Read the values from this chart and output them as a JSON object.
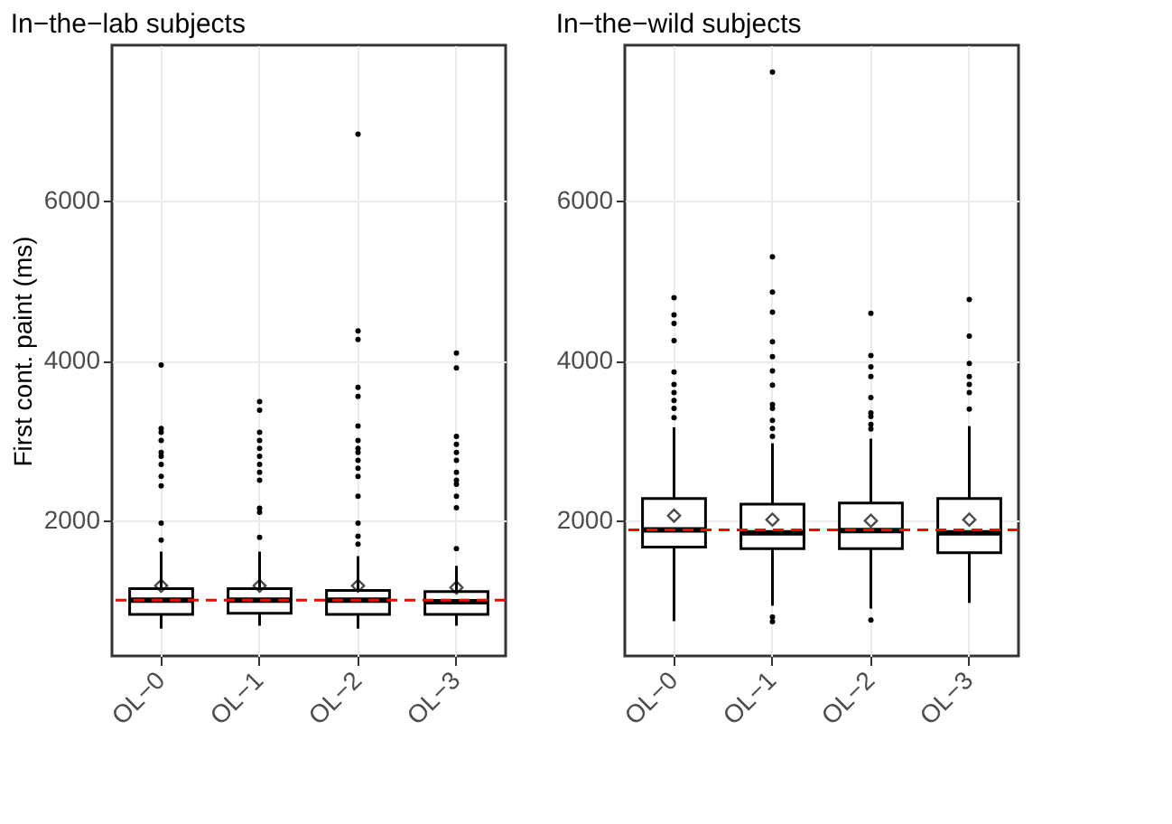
{
  "chart_data": [
    {
      "type": "box",
      "title": "In−the−lab subjects",
      "ylabel": "First cont. paint (ms)",
      "categories": [
        "OL−0",
        "OL−1",
        "OL−2",
        "OL−3"
      ],
      "ylim": [
        300,
        7950
      ],
      "yticks": [
        2000,
        4000,
        6000
      ],
      "grid": true,
      "boxes": [
        {
          "low": 643,
          "q1": 821,
          "median": 1000,
          "q3": 1143,
          "high": 1607,
          "mean": 1179,
          "outliers": [
            1750,
            1964,
            2430,
            2550,
            2700,
            2800,
            2850,
            3000,
            3100,
            3150,
            3943
          ]
        },
        {
          "low": 679,
          "q1": 836,
          "median": 1000,
          "q3": 1143,
          "high": 1607,
          "mean": 1179,
          "outliers": [
            1786,
            2100,
            2150,
            2500,
            2600,
            2700,
            2800,
            2900,
            3000,
            3100,
            3379,
            3486
          ]
        },
        {
          "low": 643,
          "q1": 821,
          "median": 1000,
          "q3": 1121,
          "high": 1550,
          "mean": 1179,
          "outliers": [
            1700,
            1800,
            1964,
            2300,
            2550,
            2650,
            2750,
            2850,
            2900,
            3000,
            3179,
            3550,
            3664,
            4264,
            4371,
            6836
          ]
        },
        {
          "low": 679,
          "q1": 821,
          "median": 979,
          "q3": 1107,
          "high": 1429,
          "mean": 1157,
          "outliers": [
            1643,
            2157,
            2300,
            2450,
            2500,
            2600,
            2750,
            2850,
            2950,
            3050,
            3907,
            4093
          ]
        }
      ],
      "ref_lines": [
        {
          "axis": "y",
          "value": 1000,
          "color": "#ff0000",
          "line_style": "dashed"
        }
      ]
    },
    {
      "type": "box",
      "title": "In−the−wild subjects",
      "categories": [
        "OL−0",
        "OL−1",
        "OL−2",
        "OL−3"
      ],
      "ylim": [
        300,
        7950
      ],
      "yticks": [
        2000,
        4000,
        6000
      ],
      "grid": true,
      "boxes": [
        {
          "low": 736,
          "q1": 1664,
          "median": 1879,
          "q3": 2271,
          "high": 3164,
          "mean": 2057,
          "outliers": [
            3286,
            3400,
            3500,
            3600,
            3700,
            3857,
            4250,
            4464,
            4571,
            4786
          ]
        },
        {
          "low": 929,
          "q1": 1643,
          "median": 1843,
          "q3": 2200,
          "high": 2964,
          "mean": 2007,
          "outliers": [
            729,
            786,
            3050,
            3150,
            3250,
            3400,
            3450,
            3693,
            3871,
            4050,
            4236,
            4607,
            4857,
            5300,
            7614
          ]
        },
        {
          "low": 893,
          "q1": 1643,
          "median": 1871,
          "q3": 2214,
          "high": 3021,
          "mean": 1993,
          "outliers": [
            750,
            3143,
            3200,
            3300,
            3343,
            3536,
            3800,
            3921,
            4064,
            4593
          ]
        },
        {
          "low": 964,
          "q1": 1593,
          "median": 1843,
          "q3": 2271,
          "high": 3179,
          "mean": 2007,
          "outliers": [
            3393,
            3600,
            3700,
            3800,
            3964,
            4307,
            4764
          ]
        }
      ],
      "ref_lines": [
        {
          "axis": "y",
          "value": 1879,
          "color": "#ff0000",
          "line_style": "dashed"
        }
      ]
    }
  ]
}
